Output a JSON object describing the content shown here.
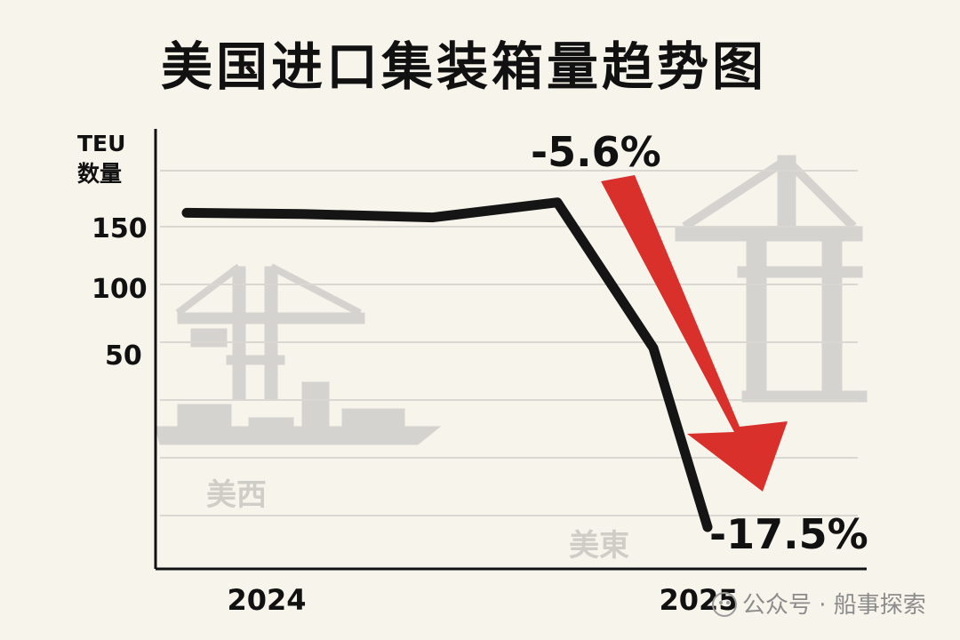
{
  "title": "美国进口集装箱量趋势图",
  "watermark": "公众号 · 船事探索",
  "colors": {
    "line": "#151515",
    "arrow": "#d9302b",
    "background": "#f7f4ec",
    "grid": "#d9d7d2"
  },
  "chart_data": {
    "type": "line",
    "ylabel_line1": "TEU",
    "ylabel_line2": "数量",
    "y_ticks": [
      150,
      100,
      50
    ],
    "x_ticks": [
      "2024",
      "2025"
    ],
    "grid": true,
    "series": [
      {
        "values": [
          162,
          161,
          158,
          171,
          45,
          -110
        ]
      }
    ],
    "annotations": [
      {
        "text": "-5.6%",
        "type": "percent-change"
      },
      {
        "text": "-17.5%",
        "type": "percent-change"
      }
    ],
    "region_labels": [
      "美西",
      "美東"
    ]
  }
}
